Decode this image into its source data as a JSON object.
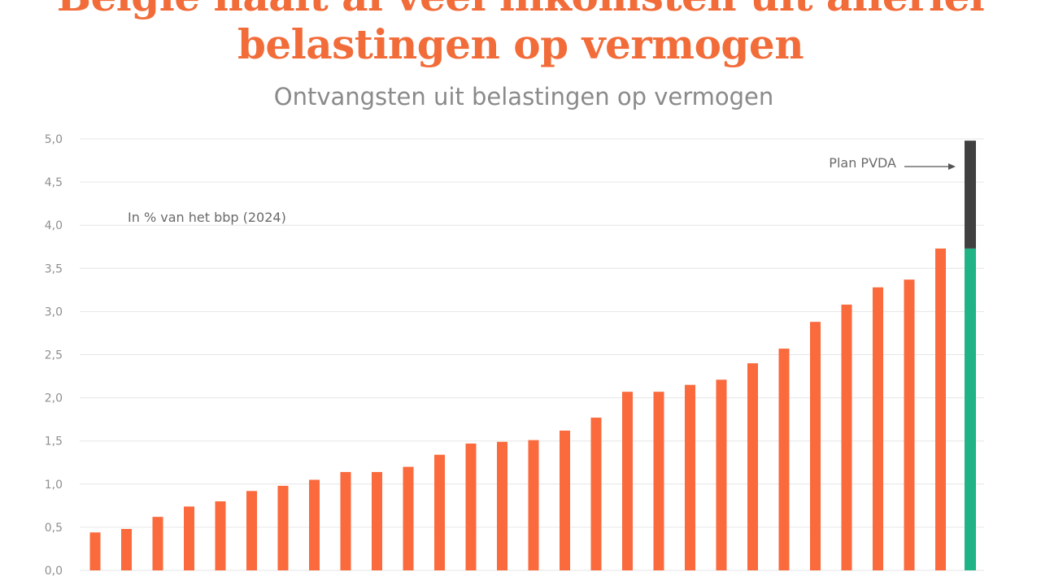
{
  "headline": {
    "line1": "België haalt al veel inkomsten uit allerlei",
    "line2": "belastingen op vermogen"
  },
  "chart_data": {
    "type": "bar",
    "title": "Ontvangsten uit belastingen op vermogen",
    "unit_note": "In % van het bbp (2024)",
    "ylim": [
      0,
      5
    ],
    "yticks": [
      "0,0",
      "0,5",
      "1,0",
      "1,5",
      "2,0",
      "2,5",
      "3,0",
      "3,5",
      "4,0",
      "4,5",
      "5,0"
    ],
    "grid": true,
    "values": [
      0.44,
      0.48,
      0.62,
      0.74,
      0.8,
      0.92,
      0.98,
      1.05,
      1.14,
      1.14,
      1.2,
      1.34,
      1.47,
      1.49,
      1.51,
      1.62,
      1.77,
      2.07,
      2.07,
      2.15,
      2.21,
      2.4,
      2.57,
      2.88,
      3.08,
      3.28,
      3.37,
      3.73
    ],
    "highlight_bar": {
      "base": 3.73,
      "plan_total": 4.98,
      "annotation": "Plan PVDA"
    },
    "colors": {
      "bars": "#fa6a3c",
      "base": "#1fb385",
      "plan": "#404040",
      "grid": "#e6e6e6",
      "headline": "#f26c3a"
    }
  }
}
